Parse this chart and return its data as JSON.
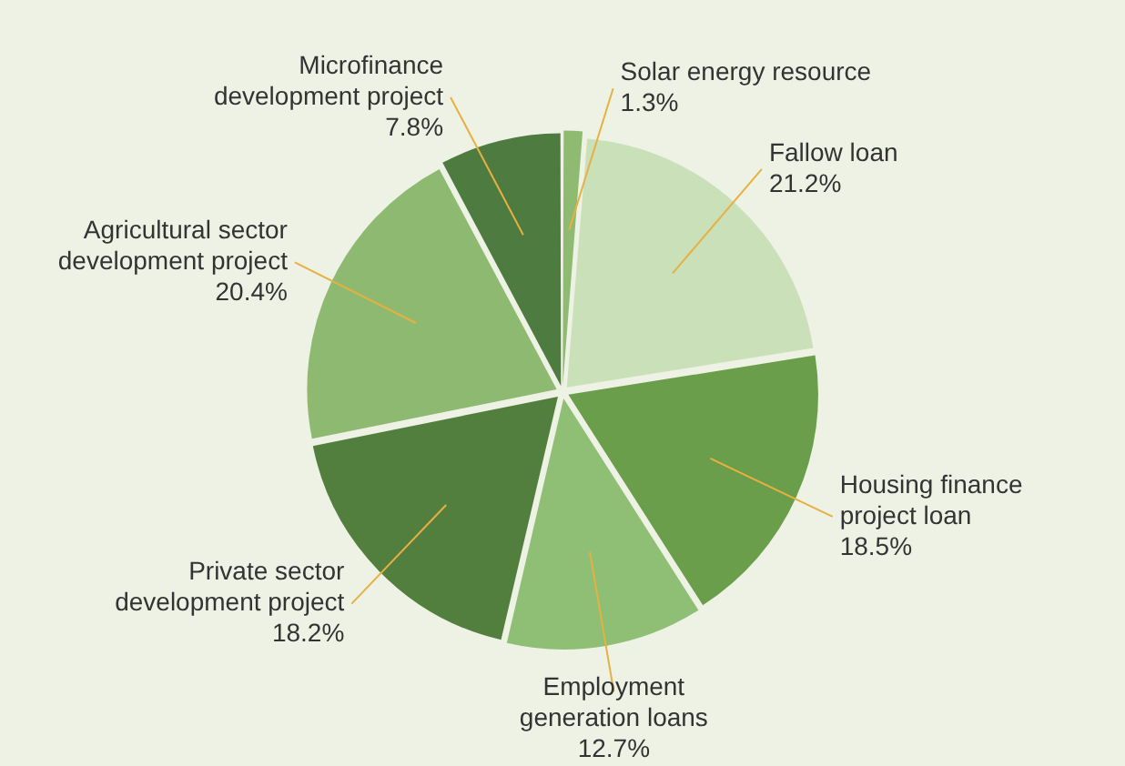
{
  "chart_data": {
    "type": "pie",
    "categories": [
      "Solar energy resource",
      "Fallow loan",
      "Housing finance project loan",
      "Employment generation loans",
      "Private sector development project",
      "Agricultural sector development project",
      "Microfinance development project"
    ],
    "values": [
      1.3,
      21.2,
      18.5,
      12.7,
      18.2,
      20.4,
      7.8
    ],
    "value_labels": [
      "1.3%",
      "21.2%",
      "18.5%",
      "12.7%",
      "18.2%",
      "20.4%",
      "7.8%"
    ],
    "colors": [
      "#8fba72",
      "#c9e0b9",
      "#6b9e4a",
      "#8fbf74",
      "#527f3e",
      "#8dba70",
      "#4e7b40"
    ],
    "legend": false
  }
}
